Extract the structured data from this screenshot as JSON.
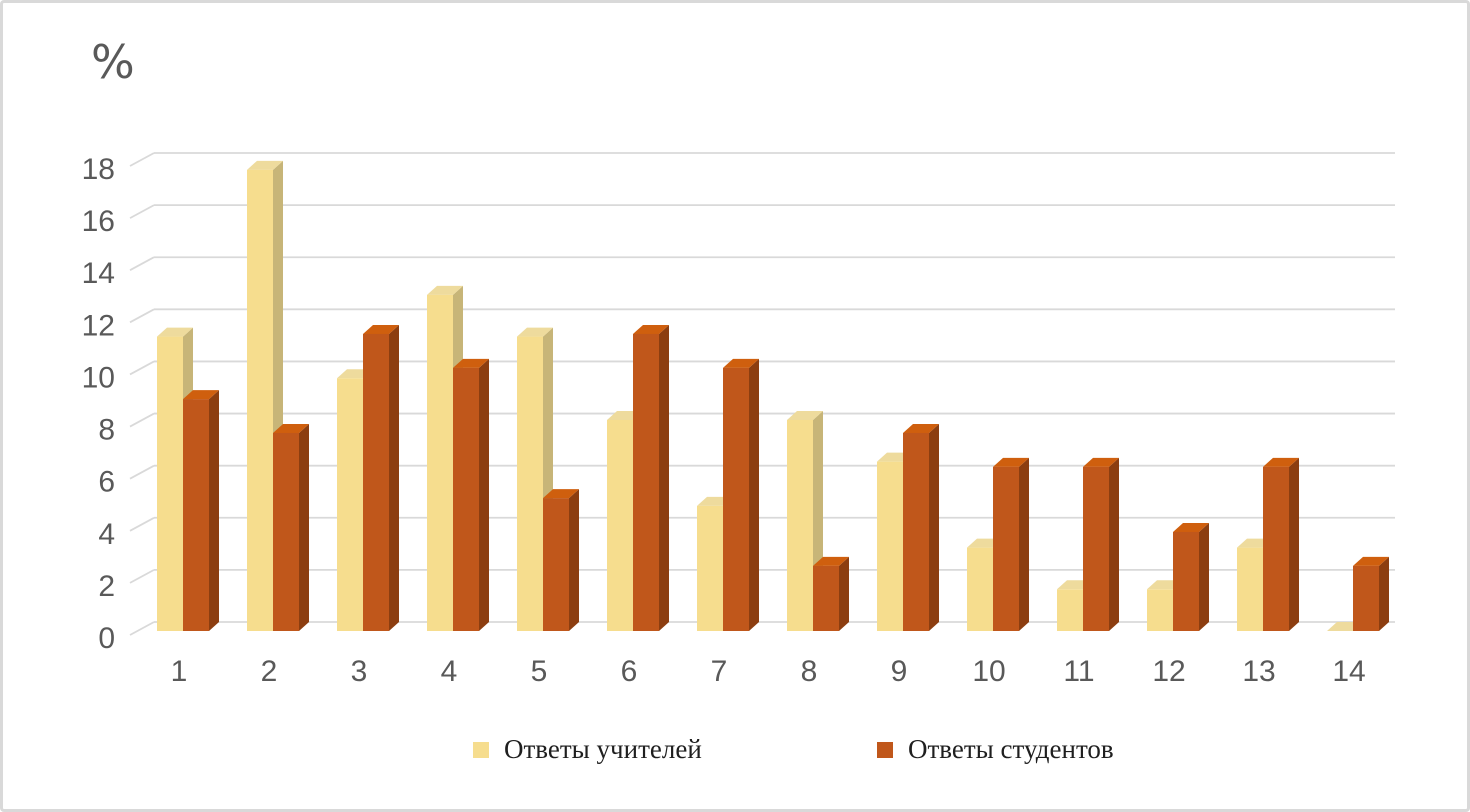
{
  "page": {
    "background_color": "#ffffff",
    "border_color": "#d9d9d9"
  },
  "chart_data": {
    "type": "bar",
    "style": "3d-clustered-column",
    "title": "",
    "xlabel": "",
    "ylabel": "%",
    "ylim": [
      0,
      18
    ],
    "ytick_step": 2,
    "yticks": [
      "0",
      "2",
      "4",
      "6",
      "8",
      "10",
      "12",
      "14",
      "16",
      "18"
    ],
    "grid": true,
    "grid_color": "#d9d9d9",
    "axis_text_color": "#595959",
    "legend_position": "bottom",
    "categories": [
      "1",
      "2",
      "3",
      "4",
      "5",
      "6",
      "7",
      "8",
      "9",
      "10",
      "11",
      "12",
      "13",
      "14"
    ],
    "series": [
      {
        "name": "Ответы учителей",
        "values": [
          11.3,
          17.7,
          9.7,
          12.9,
          11.3,
          8.1,
          4.8,
          8.1,
          6.5,
          3.2,
          1.6,
          1.6,
          3.2,
          0
        ],
        "color_front": "#f6dd8e",
        "color_top": "#eedb9d",
        "color_side": "#c7b578"
      },
      {
        "name": "Ответы студентов",
        "values": [
          8.9,
          7.6,
          11.4,
          10.1,
          5.1,
          11.4,
          10.1,
          2.5,
          7.6,
          6.3,
          6.3,
          3.8,
          6.3,
          2.5
        ],
        "color_front": "#c0571b",
        "color_top": "#cf5f0e",
        "color_side": "#8c3e10"
      }
    ]
  }
}
